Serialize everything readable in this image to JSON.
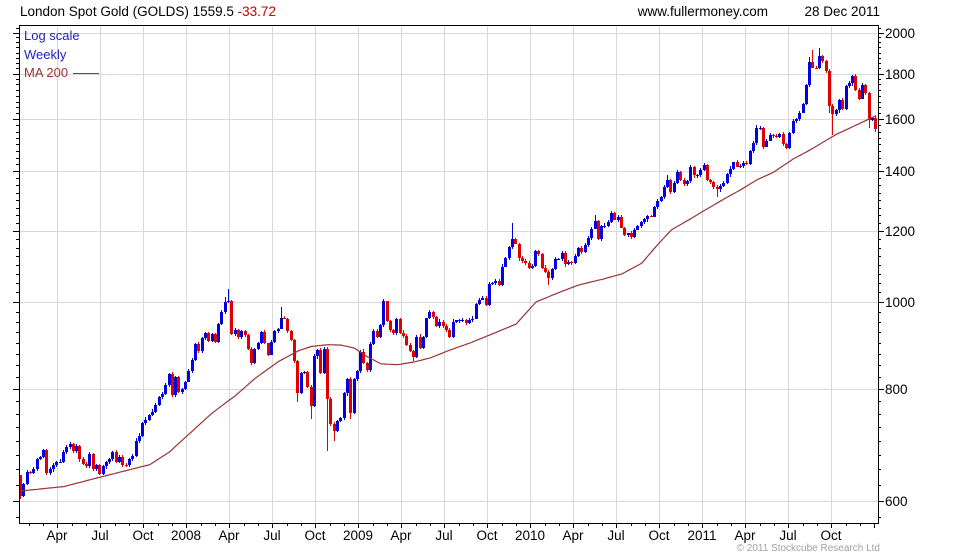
{
  "header": {
    "title": "London Spot Gold (GOLDS)",
    "last_price": "1559.5",
    "change": "-33.72",
    "website": "www.fullermoney.com",
    "date": "28 Dec 2011"
  },
  "legend": {
    "scale_label": "Log scale",
    "interval_label": "Weekly",
    "ma_label": "MA 200"
  },
  "footer": {
    "copyright": "© 2011 Stockcube Research Ltd"
  },
  "colors": {
    "up_candle": "#0000e0",
    "down_candle": "#e00000",
    "ma_line": "#993333",
    "grid": "#d8d8d8",
    "axis": "#000000",
    "legend_text": "#2222bb",
    "change_negative": "#cc0000",
    "copyright": "#a0a0a0"
  },
  "chart_data": {
    "type": "candlestick",
    "title": "London Spot Gold (GOLDS)",
    "scale": "log",
    "interval": "weekly",
    "overlay": "MA 200",
    "period": {
      "start": "Jan 2007",
      "end": "28 Dec 2011"
    },
    "y_axis": {
      "ticks": [
        2000,
        1800,
        1600,
        1400,
        1200,
        1000,
        800,
        600
      ],
      "minor_step": 25,
      "visible_range": [
        566,
        2040
      ],
      "side": "right"
    },
    "x_axis": {
      "tick_labels": [
        "Apr",
        "Jul",
        "Oct",
        "2008",
        "Apr",
        "Jul",
        "Oct",
        "2009",
        "Apr",
        "Jul",
        "Oct",
        "2010",
        "Apr",
        "Jul",
        "Oct",
        "2011",
        "Apr",
        "Jul",
        "Oct"
      ],
      "minor_tick": "monthly"
    },
    "first_open": 640,
    "weekly_closes": [
      607,
      626,
      646,
      644,
      651,
      667,
      672,
      683,
      644,
      650,
      657,
      662,
      663,
      679,
      689,
      694,
      682,
      690,
      667,
      660,
      655,
      676,
      650,
      657,
      643,
      655,
      663,
      668,
      679,
      663,
      672,
      658,
      657,
      667,
      673,
      700,
      709,
      732,
      739,
      747,
      754,
      768,
      783,
      789,
      808,
      831,
      787,
      825,
      794,
      800,
      815,
      838,
      862,
      897,
      882,
      911,
      923,
      905,
      922,
      903,
      945,
      975,
      999,
      1003,
      920,
      930,
      913,
      927,
      918,
      886,
      855,
      886,
      900,
      926,
      899,
      873,
      903,
      928,
      934,
      960,
      958,
      928,
      908,
      859,
      792,
      833,
      835,
      803,
      765,
      870,
      884,
      833,
      886,
      780,
      730,
      718,
      736,
      742,
      791,
      820,
      752,
      821,
      837,
      880,
      855,
      839,
      898,
      928,
      914,
      942,
      1002,
      953,
      930,
      924,
      956,
      924,
      917,
      895,
      881,
      868,
      914,
      888,
      914,
      959,
      975,
      962,
      940,
      951,
      941,
      931,
      913,
      951,
      954,
      954,
      955,
      948,
      954,
      958,
      995,
      1006,
      1010,
      992,
      1048,
      1050,
      1056,
      1045,
      1095,
      1119,
      1151,
      1176,
      1162,
      1119,
      1111,
      1105,
      1092,
      1096,
      1139,
      1131,
      1092,
      1081,
      1065,
      1090,
      1118,
      1118,
      1135,
      1102,
      1107,
      1105,
      1126,
      1150,
      1136,
      1157,
      1179,
      1208,
      1232,
      1176,
      1215,
      1217,
      1230,
      1256,
      1236,
      1244,
      1211,
      1188,
      1193,
      1181,
      1205,
      1216,
      1228,
      1237,
      1247,
      1246,
      1277,
      1296,
      1309,
      1346,
      1368,
      1328,
      1359,
      1397,
      1369,
      1353,
      1364,
      1414,
      1385,
      1386,
      1405,
      1421,
      1369,
      1361,
      1343,
      1337,
      1349,
      1358,
      1389,
      1409,
      1432,
      1417,
      1420,
      1430,
      1428,
      1474,
      1505,
      1564,
      1566,
      1491,
      1515,
      1537,
      1532,
      1529,
      1539,
      1500,
      1487,
      1545,
      1594,
      1601,
      1628,
      1663,
      1747,
      1852,
      1828,
      1827,
      1884,
      1857,
      1812,
      1656,
      1624,
      1638,
      1680,
      1642,
      1743,
      1756,
      1788,
      1725,
      1688,
      1747,
      1712,
      1598,
      1606,
      1559.5
    ],
    "wick_overrides": {
      "0": [
        641,
        602
      ],
      "62": [
        1014,
        null
      ],
      "63": [
        1033,
        null
      ],
      "79": [
        988,
        null
      ],
      "84": [
        null,
        774
      ],
      "88": [
        null,
        740
      ],
      "93": [
        null,
        682
      ],
      "95": [
        null,
        699
      ],
      "100": [
        null,
        741
      ],
      "110": [
        1007,
        null
      ],
      "119": [
        null,
        860
      ],
      "149": [
        1226,
        null
      ],
      "160": [
        null,
        1044
      ],
      "174": [
        1251,
        null
      ],
      "196": [
        1388,
        null
      ],
      "211": [
        null,
        1309
      ],
      "223": [
        1577,
        null
      ],
      "239": [
        1878,
        null
      ],
      "240": [
        1913,
        null
      ],
      "242": [
        1921,
        null
      ],
      "245": [
        null,
        1628
      ],
      "246": [
        null,
        1535
      ],
      "257": [
        null,
        1563
      ],
      "259": [
        null,
        1550
      ]
    },
    "ma200_points": [
      [
        0,
        615
      ],
      [
        13,
        622
      ],
      [
        26,
        640
      ],
      [
        39,
        658
      ],
      [
        45,
        680
      ],
      [
        52,
        718
      ],
      [
        58,
        752
      ],
      [
        65,
        786
      ],
      [
        71,
        822
      ],
      [
        78,
        858
      ],
      [
        84,
        882
      ],
      [
        88,
        892
      ],
      [
        93,
        896
      ],
      [
        97,
        895
      ],
      [
        101,
        888
      ],
      [
        105,
        868
      ],
      [
        109,
        853
      ],
      [
        114,
        851
      ],
      [
        119,
        857
      ],
      [
        124,
        866
      ],
      [
        130,
        884
      ],
      [
        136,
        900
      ],
      [
        143,
        922
      ],
      [
        150,
        945
      ],
      [
        156,
        1000
      ],
      [
        163,
        1025
      ],
      [
        169,
        1045
      ],
      [
        176,
        1060
      ],
      [
        182,
        1075
      ],
      [
        188,
        1105
      ],
      [
        192,
        1150
      ],
      [
        197,
        1204
      ],
      [
        203,
        1240
      ],
      [
        208,
        1272
      ],
      [
        214,
        1310
      ],
      [
        218,
        1335
      ],
      [
        223,
        1370
      ],
      [
        228,
        1397
      ],
      [
        234,
        1446
      ],
      [
        238,
        1472
      ],
      [
        241,
        1494
      ],
      [
        244,
        1517
      ],
      [
        247,
        1540
      ],
      [
        250,
        1558
      ],
      [
        253,
        1577
      ],
      [
        256,
        1596
      ],
      [
        259,
        1615
      ]
    ]
  }
}
